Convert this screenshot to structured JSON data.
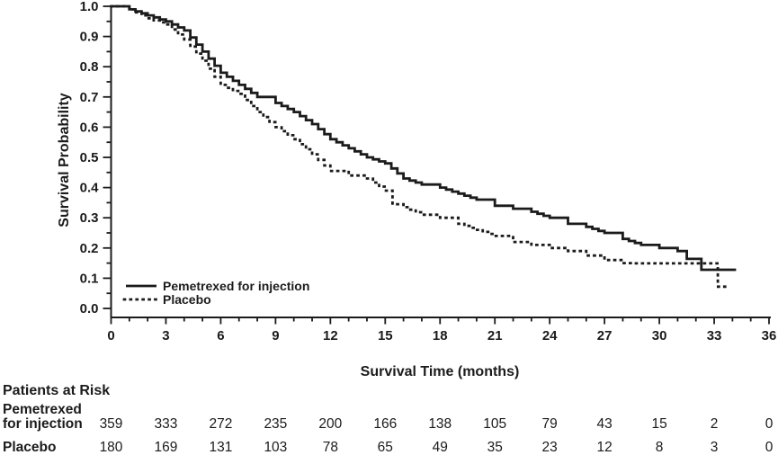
{
  "figure": {
    "background": "#ffffff",
    "ink_color": "#1b1b1b"
  },
  "chart_data": {
    "type": "line",
    "subtype": "kaplan-meier-step-curves",
    "title": "",
    "xlabel": "Survival Time (months)",
    "ylabel": "Survival Probability",
    "xlim": [
      0,
      36
    ],
    "ylim": [
      0.0,
      1.0
    ],
    "grid": false,
    "legend_position": "inside-bottom-left",
    "x_ticks": [
      0,
      3,
      6,
      9,
      12,
      15,
      18,
      21,
      24,
      27,
      30,
      33,
      36
    ],
    "x_minor_tick_step": 1,
    "y_tick_labels": [
      "0.0",
      "0.1",
      "0.2",
      "0.3",
      "0.4",
      "0.5",
      "0.6",
      "0.7",
      "0.8",
      "0.9",
      "1.0"
    ],
    "y_minor_tick_step": 0.05,
    "series": [
      {
        "name": "Pemetrexed for injection",
        "line_style": "solid",
        "color": "#1b1b1b",
        "x": [
          0,
          0.7,
          1,
          2,
          3,
          4,
          5,
          6,
          7,
          8,
          9,
          10,
          11,
          12,
          13,
          14,
          15,
          16,
          17,
          18,
          19,
          20,
          21,
          22,
          23,
          24,
          25,
          26,
          27,
          28,
          29,
          30,
          31,
          31.5,
          32.3,
          34.2
        ],
        "y": [
          1.0,
          1.0,
          0.99,
          0.97,
          0.95,
          0.92,
          0.85,
          0.78,
          0.74,
          0.7,
          0.68,
          0.65,
          0.61,
          0.56,
          0.53,
          0.5,
          0.48,
          0.43,
          0.41,
          0.4,
          0.38,
          0.36,
          0.34,
          0.33,
          0.32,
          0.3,
          0.28,
          0.27,
          0.25,
          0.23,
          0.21,
          0.2,
          0.19,
          0.164,
          0.128,
          0.128
        ]
      },
      {
        "name": "Placebo",
        "line_style": "dotted",
        "color": "#1b1b1b",
        "x": [
          0,
          0.7,
          1,
          2,
          3,
          4,
          5,
          6,
          7,
          8,
          9,
          10,
          11,
          12,
          13,
          14,
          15,
          15.4,
          16,
          17,
          18,
          19,
          20,
          21,
          22,
          23,
          24,
          25,
          26,
          27,
          28,
          28.7,
          33.1,
          33.2,
          33.6
        ],
        "y": [
          1.0,
          1.0,
          0.99,
          0.96,
          0.94,
          0.89,
          0.82,
          0.74,
          0.71,
          0.65,
          0.6,
          0.56,
          0.51,
          0.455,
          0.44,
          0.43,
          0.39,
          0.345,
          0.335,
          0.31,
          0.3,
          0.28,
          0.26,
          0.24,
          0.22,
          0.21,
          0.2,
          0.19,
          0.175,
          0.16,
          0.15,
          0.149,
          0.149,
          0.072,
          0.072
        ]
      }
    ],
    "risk_table": {
      "title": "Patients at Risk",
      "time_points": [
        0,
        3,
        6,
        9,
        12,
        15,
        18,
        21,
        24,
        27,
        30,
        33,
        36
      ],
      "rows": [
        {
          "label_lines": [
            "Pemetrexed",
            "for injection"
          ],
          "counts": [
            359,
            333,
            272,
            235,
            200,
            166,
            138,
            105,
            79,
            43,
            15,
            2,
            0
          ]
        },
        {
          "label_lines": [
            "Placebo"
          ],
          "counts": [
            180,
            169,
            131,
            103,
            78,
            65,
            49,
            35,
            23,
            12,
            8,
            3,
            0
          ]
        }
      ]
    }
  }
}
